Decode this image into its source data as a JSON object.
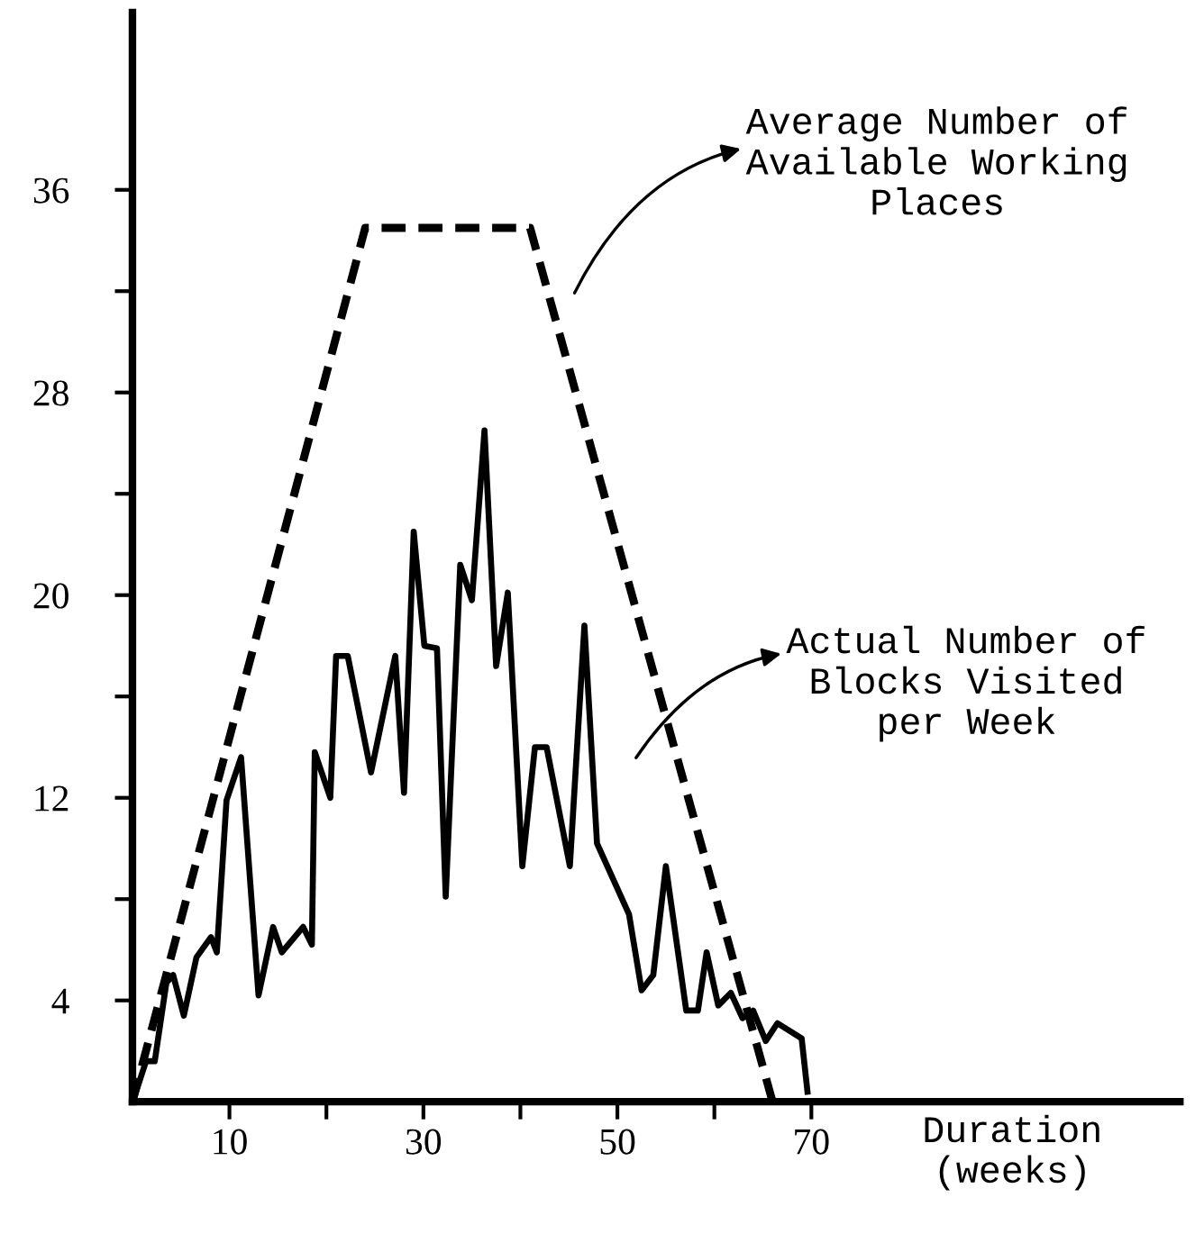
{
  "chart_data": {
    "type": "line",
    "xlabel": "Duration\n(weeks)",
    "xlim": [
      0,
      108
    ],
    "ylim": [
      0,
      43
    ],
    "xticks": [
      10,
      {
        "value": 20,
        "label": null
      },
      30,
      {
        "value": 40,
        "label": null
      },
      50,
      {
        "value": 60,
        "label": null
      },
      70
    ],
    "yticks": [
      4,
      {
        "value": 8,
        "label": null
      },
      12,
      {
        "value": 16,
        "label": null
      },
      20,
      {
        "value": 24,
        "label": null
      },
      28,
      {
        "value": 32,
        "label": null
      },
      36
    ],
    "grid": false,
    "legend": false,
    "marker": "none",
    "annotations": [
      "Average Number of\nAvailable Working\nPlaces",
      "Actual Number of\nBlocks Visited\nper Week"
    ],
    "series": [
      {
        "color": "#000000",
        "line_style": "dashed",
        "x": [
          0,
          24,
          41,
          66
        ],
        "values": [
          0,
          34.5,
          34.5,
          0
        ]
      },
      {
        "color": "#000000",
        "line_style": "solid",
        "x": [
          0.2,
          1.4,
          2.3,
          3.5,
          4.2,
          5.3,
          6.6,
          8.1,
          8.7,
          9.7,
          11.2,
          13,
          14.5,
          15.4,
          17.6,
          18.5,
          18.8,
          20.4,
          21,
          22.2,
          24.6,
          27.1,
          28,
          29,
          30.1,
          31.4,
          32.3,
          33.8,
          35,
          36.3,
          37.5,
          38.7,
          40.2,
          41.5,
          42.7,
          45.1,
          46.6,
          47.9,
          51.2,
          52.5,
          53.7,
          55,
          57.1,
          58.3,
          59.2,
          60.4,
          61.7,
          62.9,
          64,
          65.3,
          66.5,
          69,
          69.6
        ],
        "values": [
          0.2,
          1.6,
          1.6,
          4.7,
          5,
          3.4,
          5.7,
          6.5,
          5.9,
          11.9,
          13.6,
          4.2,
          6.9,
          5.9,
          6.9,
          6.2,
          13.8,
          12,
          17.6,
          17.6,
          13,
          17.6,
          12.2,
          22.5,
          18,
          17.9,
          8.1,
          21.2,
          19.8,
          26.5,
          17.2,
          20.1,
          9.3,
          14,
          14,
          9.3,
          18.8,
          10.2,
          7.4,
          4.4,
          5,
          9.3,
          3.6,
          3.6,
          5.9,
          3.8,
          4.3,
          3.3,
          3.6,
          2.4,
          3.1,
          2.5,
          0.4
        ]
      }
    ]
  }
}
